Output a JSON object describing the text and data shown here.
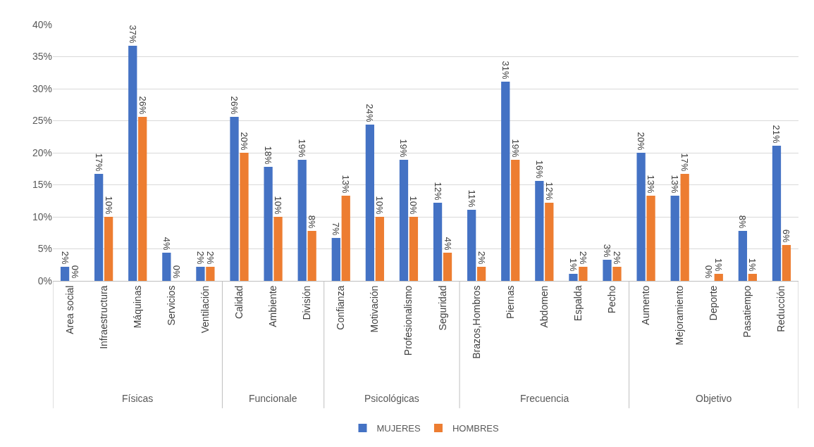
{
  "chart_data": {
    "type": "bar",
    "categories": [
      "Area social",
      "Infraestructura",
      "Máquinas",
      "Servicios",
      "Ventilación",
      "Calidad",
      "Ambiente",
      "División",
      "Confianza",
      "Motivación",
      "Profesionalismo",
      "Seguridad",
      "Brazos,Hombros",
      "Piernas",
      "Abdomen",
      "Espalda",
      "Pecho",
      "Aumento",
      "Mejoramiento",
      "Deporte",
      "Pasatiempo",
      "Reducción"
    ],
    "series": [
      {
        "name": "MUJERES",
        "color": "#4472c4",
        "values": [
          2.2,
          16.7,
          36.7,
          4.4,
          2.2,
          25.6,
          17.8,
          18.9,
          6.7,
          24.4,
          18.9,
          12.2,
          11.1,
          31.1,
          15.6,
          1.1,
          3.3,
          20.0,
          13.3,
          0,
          7.8,
          21.1
        ],
        "value_labels": [
          "2%",
          "17%",
          "37%",
          "4%",
          "2%",
          "26%",
          "18%",
          "19%",
          "7%",
          "24%",
          "19%",
          "12%",
          "11%",
          "31%",
          "16%",
          "1%",
          "3%",
          "20%",
          "13%",
          "0%",
          "8%",
          "21%"
        ]
      },
      {
        "name": "HOMBRES",
        "color": "#ed7d31",
        "values": [
          0,
          10.0,
          25.6,
          0,
          2.2,
          20.0,
          10.0,
          7.8,
          13.3,
          10.0,
          10.0,
          4.4,
          2.2,
          18.9,
          12.2,
          2.2,
          2.2,
          13.3,
          16.7,
          1.1,
          1.1,
          5.6
        ],
        "value_labels": [
          "0%",
          "10%",
          "26%",
          "0%",
          "2%",
          "20%",
          "10%",
          "8%",
          "13%",
          "10%",
          "10%",
          "4%",
          "2%",
          "19%",
          "12%",
          "2%",
          "2%",
          "13%",
          "17%",
          "1%",
          "1%",
          "6%"
        ]
      }
    ],
    "ylim": [
      0,
      40
    ],
    "yticks": [
      {
        "value": 0,
        "label": "0%"
      },
      {
        "value": 5,
        "label": "5%"
      },
      {
        "value": 10,
        "label": "10%"
      },
      {
        "value": 15,
        "label": "15%"
      },
      {
        "value": 20,
        "label": "20%"
      },
      {
        "value": 25,
        "label": "25%"
      },
      {
        "value": 30,
        "label": "30%"
      },
      {
        "value": 35,
        "label": "35%"
      },
      {
        "value": 40,
        "label": "40%"
      }
    ],
    "grid": "y",
    "legend": "bottom",
    "annotations": [
      "Físicas",
      "Funcionale",
      "Psicológicas",
      "Frecuencia",
      "Objetivo"
    ]
  }
}
